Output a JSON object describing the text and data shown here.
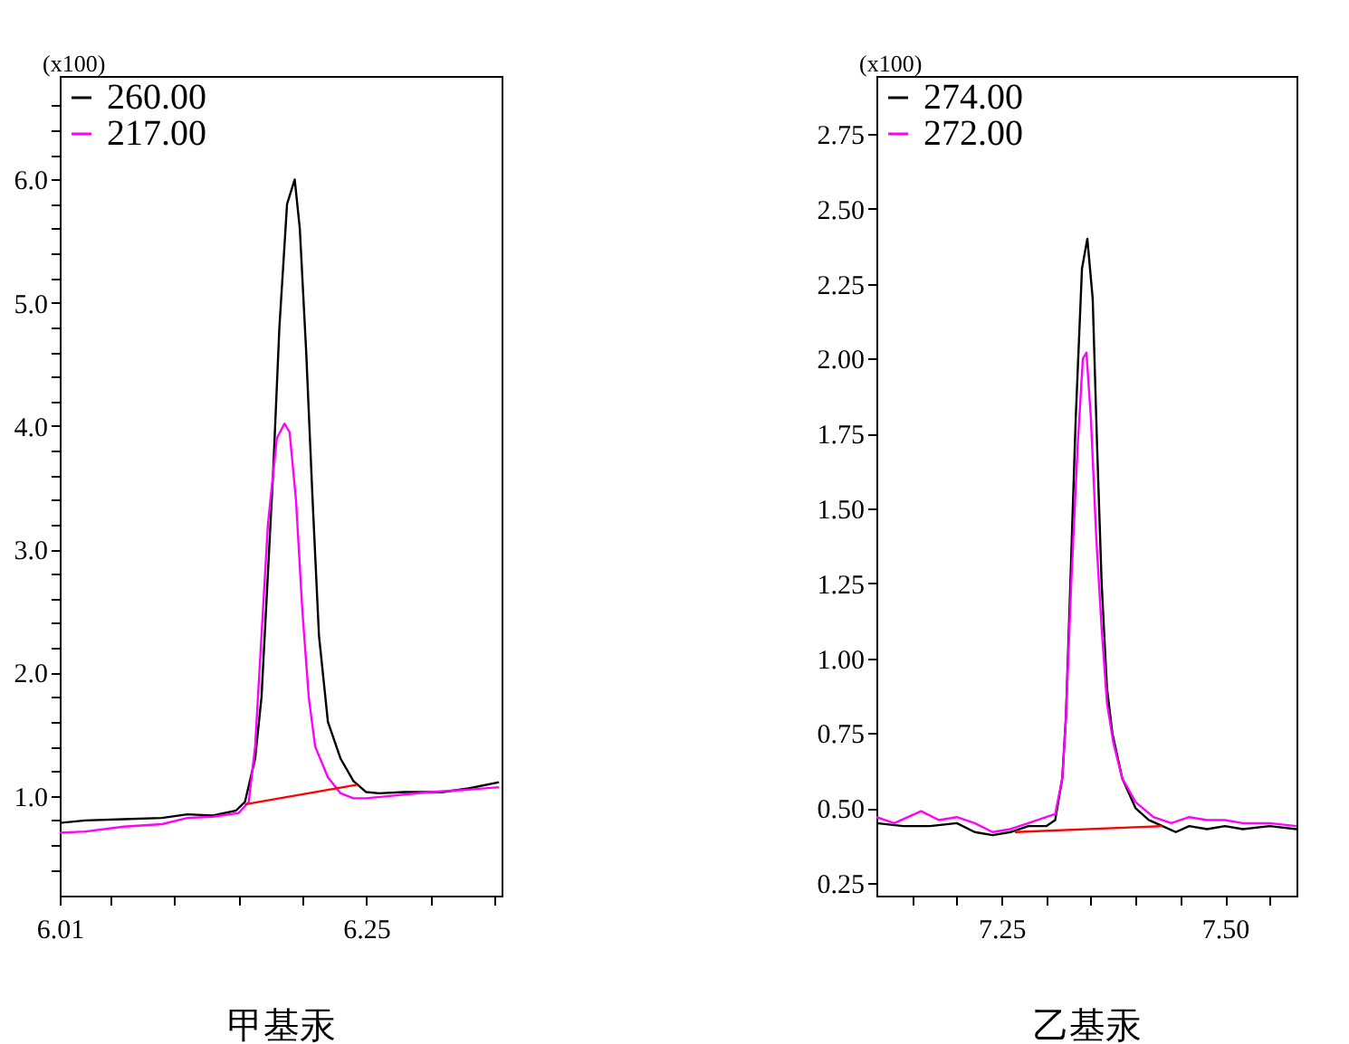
{
  "chart_data": [
    {
      "type": "line",
      "xlabel": "甲基汞",
      "ylabel": "(x100)",
      "legend": "top left",
      "marker": "none",
      "line_style": "solid",
      "grid": false,
      "xlim": [
        6.01,
        6.356
      ],
      "xticks": [
        6.01,
        {
          "value": 6.05,
          "label": null
        },
        {
          "value": 6.1,
          "label": null
        },
        {
          "value": 6.15,
          "label": null
        },
        {
          "value": 6.2,
          "label": null
        },
        6.25,
        {
          "value": 6.3,
          "label": null
        },
        {
          "value": 6.35,
          "label": null
        }
      ],
      "ylim": [
        0.19,
        6.84
      ],
      "yticks": [
        {
          "value": 0.4,
          "label": null
        },
        {
          "value": 0.6,
          "label": null
        },
        {
          "value": 0.8,
          "label": null
        },
        {
          "value": 1,
          "label": "1.0"
        },
        {
          "value": 1.2,
          "label": null
        },
        {
          "value": 1.4,
          "label": null
        },
        {
          "value": 1.6,
          "label": null
        },
        {
          "value": 1.8,
          "label": null
        },
        {
          "value": 2,
          "label": "2.0"
        },
        {
          "value": 2.2,
          "label": null
        },
        {
          "value": 2.4,
          "label": null
        },
        {
          "value": 2.6,
          "label": null
        },
        {
          "value": 2.8,
          "label": null
        },
        {
          "value": 3,
          "label": "3.0"
        },
        {
          "value": 3.2,
          "label": null
        },
        {
          "value": 3.4,
          "label": null
        },
        {
          "value": 3.6,
          "label": null
        },
        {
          "value": 3.8,
          "label": null
        },
        {
          "value": 4,
          "label": "4.0"
        },
        {
          "value": 4.2,
          "label": null
        },
        {
          "value": 4.4,
          "label": null
        },
        {
          "value": 4.6,
          "label": null
        },
        {
          "value": 4.8,
          "label": null
        },
        {
          "value": 5,
          "label": "5.0"
        },
        {
          "value": 5.2,
          "label": null
        },
        {
          "value": 5.4,
          "label": null
        },
        {
          "value": 5.6,
          "label": null
        },
        {
          "value": 5.8,
          "label": null
        },
        {
          "value": 6,
          "label": "6.0"
        },
        {
          "value": 6.2,
          "label": null
        },
        {
          "value": 6.4,
          "label": null
        },
        {
          "value": 6.6,
          "label": null
        }
      ],
      "series": [
        {
          "name": "260.00",
          "color": "#000000",
          "x": [
            6.01,
            6.03,
            6.06,
            6.09,
            6.11,
            6.13,
            6.148,
            6.155,
            6.163,
            6.168,
            6.172,
            6.177,
            6.182,
            6.188,
            6.194,
            6.198,
            6.203,
            6.208,
            6.213,
            6.22,
            6.23,
            6.24,
            6.25,
            6.26,
            6.28,
            6.31,
            6.33,
            6.354
          ],
          "values": [
            0.78,
            0.8,
            0.81,
            0.82,
            0.85,
            0.84,
            0.88,
            0.95,
            1.3,
            1.8,
            2.6,
            3.6,
            4.8,
            5.8,
            6.0,
            5.6,
            4.6,
            3.4,
            2.3,
            1.6,
            1.3,
            1.12,
            1.03,
            1.02,
            1.03,
            1.03,
            1.06,
            1.11
          ]
        },
        {
          "name": "217.00",
          "color": "#ff00ff",
          "x": [
            6.01,
            6.03,
            6.06,
            6.09,
            6.11,
            6.13,
            6.15,
            6.158,
            6.163,
            6.168,
            6.173,
            6.18,
            6.186,
            6.19,
            6.195,
            6.2,
            6.205,
            6.21,
            6.22,
            6.23,
            6.24,
            6.25,
            6.27,
            6.3,
            6.33,
            6.354
          ],
          "values": [
            0.7,
            0.71,
            0.75,
            0.77,
            0.82,
            0.83,
            0.86,
            0.95,
            1.4,
            2.3,
            3.2,
            3.9,
            4.02,
            3.95,
            3.4,
            2.5,
            1.8,
            1.4,
            1.15,
            1.02,
            0.98,
            0.98,
            1.0,
            1.03,
            1.05,
            1.07
          ]
        },
        {
          "color": "#ff0000",
          "x": [
            6.155,
            6.243
          ],
          "values": [
            0.93,
            1.09
          ]
        }
      ]
    },
    {
      "type": "line",
      "xlabel": "乙基汞",
      "ylabel": "(x100)",
      "legend": "top left",
      "marker": "none",
      "line_style": "solid",
      "grid": false,
      "xlim": [
        7.11,
        7.58
      ],
      "xticks": [
        {
          "value": 7.15,
          "label": null
        },
        {
          "value": 7.2,
          "label": null
        },
        {
          "value": 7.25,
          "label": "7.25"
        },
        {
          "value": 7.3,
          "label": null
        },
        {
          "value": 7.35,
          "label": null
        },
        {
          "value": 7.4,
          "label": null
        },
        {
          "value": 7.45,
          "label": null
        },
        {
          "value": 7.5,
          "label": "7.50"
        },
        {
          "value": 7.55,
          "label": null
        }
      ],
      "ylim": [
        0.208,
        2.943
      ],
      "yticks": [
        {
          "value": 0.25,
          "label": "0.25"
        },
        {
          "value": 0.5,
          "label": "0.50"
        },
        {
          "value": 0.75,
          "label": "0.75"
        },
        {
          "value": 1,
          "label": "1.00"
        },
        {
          "value": 1.25,
          "label": "1.25"
        },
        {
          "value": 1.5,
          "label": "1.50"
        },
        {
          "value": 1.75,
          "label": "1.75"
        },
        {
          "value": 2,
          "label": "2.00"
        },
        {
          "value": 2.25,
          "label": "2.25"
        },
        {
          "value": 2.5,
          "label": "2.50"
        },
        {
          "value": 2.75,
          "label": "2.75"
        }
      ],
      "series": [
        {
          "name": "274.00",
          "color": "#000000",
          "x": [
            7.11,
            7.14,
            7.17,
            7.2,
            7.22,
            7.24,
            7.26,
            7.28,
            7.3,
            7.31,
            7.318,
            7.322,
            7.327,
            7.333,
            7.34,
            7.346,
            7.352,
            7.357,
            7.362,
            7.368,
            7.374,
            7.385,
            7.4,
            7.415,
            7.43,
            7.445,
            7.46,
            7.48,
            7.5,
            7.52,
            7.55,
            7.58
          ],
          "values": [
            0.45,
            0.44,
            0.44,
            0.45,
            0.42,
            0.41,
            0.42,
            0.44,
            0.44,
            0.46,
            0.6,
            0.8,
            1.25,
            1.8,
            2.3,
            2.4,
            2.2,
            1.7,
            1.25,
            0.9,
            0.75,
            0.6,
            0.5,
            0.46,
            0.44,
            0.42,
            0.44,
            0.43,
            0.44,
            0.43,
            0.44,
            0.43
          ]
        },
        {
          "name": "272.00",
          "color": "#ff00ff",
          "x": [
            7.11,
            7.13,
            7.16,
            7.18,
            7.2,
            7.22,
            7.24,
            7.26,
            7.28,
            7.3,
            7.31,
            7.318,
            7.322,
            7.328,
            7.335,
            7.341,
            7.345,
            7.35,
            7.356,
            7.362,
            7.368,
            7.375,
            7.385,
            7.4,
            7.42,
            7.44,
            7.46,
            7.48,
            7.5,
            7.52,
            7.55,
            7.58
          ],
          "values": [
            0.47,
            0.45,
            0.49,
            0.46,
            0.47,
            0.45,
            0.42,
            0.43,
            0.45,
            0.47,
            0.48,
            0.6,
            0.8,
            1.25,
            1.7,
            2.0,
            2.02,
            1.8,
            1.4,
            1.1,
            0.85,
            0.72,
            0.6,
            0.52,
            0.47,
            0.45,
            0.47,
            0.46,
            0.46,
            0.45,
            0.45,
            0.44
          ]
        },
        {
          "color": "#ff0000",
          "x": [
            7.265,
            7.43
          ],
          "values": [
            0.42,
            0.44
          ]
        }
      ]
    }
  ]
}
